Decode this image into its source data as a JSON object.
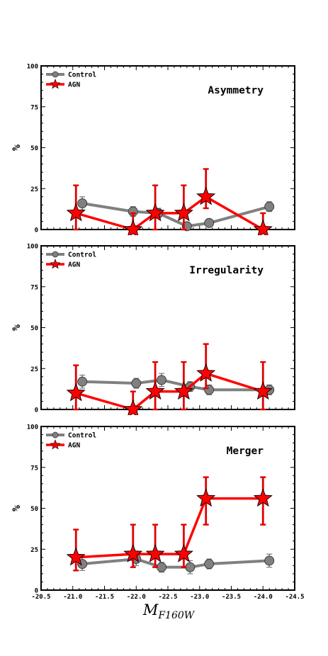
{
  "figure": {
    "xlabel_main": "M",
    "xlabel_sub": "F160W"
  },
  "chart_data": [
    {
      "type": "line",
      "title": "Asymmetry",
      "ylabel": "%",
      "xlabel": "",
      "xlim": [
        -20.5,
        -24.5
      ],
      "ylim": [
        0,
        100
      ],
      "yticks": [
        "0",
        "25",
        "50",
        "75",
        "100"
      ],
      "xticks": [],
      "grid": false,
      "legend_position": "top-left",
      "series": [
        {
          "name": "Control",
          "color": "#808080",
          "marker": "circle",
          "x": [
            -21.15,
            -21.95,
            -22.35,
            -22.8,
            -23.15,
            -24.1
          ],
          "y": [
            16,
            11,
            10,
            2,
            4,
            14
          ],
          "yerr": [
            4,
            3,
            3,
            1.5,
            1.5,
            3
          ]
        },
        {
          "name": "AGN",
          "color": "#ff0000",
          "marker": "star",
          "x": [
            -21.05,
            -21.95,
            -22.3,
            -22.75,
            -23.1,
            -24.0
          ],
          "y": [
            10,
            0,
            10,
            10,
            20,
            0
          ],
          "yerr_low": [
            10,
            0,
            10,
            10,
            7,
            0
          ],
          "yerr_high": [
            17,
            10,
            17,
            17,
            17,
            10
          ]
        }
      ]
    },
    {
      "type": "line",
      "title": "Irregularity",
      "ylabel": "%",
      "xlabel": "",
      "xlim": [
        -20.5,
        -24.5
      ],
      "ylim": [
        0,
        100
      ],
      "yticks": [
        "0",
        "25",
        "50",
        "75",
        "100"
      ],
      "xticks": [],
      "grid": false,
      "legend_position": "top-left",
      "series": [
        {
          "name": "Control",
          "color": "#808080",
          "marker": "circle",
          "x": [
            -21.15,
            -22.0,
            -22.4,
            -22.85,
            -23.15,
            -24.1
          ],
          "y": [
            17,
            16,
            18,
            14,
            12,
            12
          ],
          "yerr": [
            4,
            3,
            4,
            3,
            3,
            3
          ]
        },
        {
          "name": "AGN",
          "color": "#ff0000",
          "marker": "star",
          "x": [
            -21.05,
            -21.95,
            -22.3,
            -22.75,
            -23.1,
            -24.0
          ],
          "y": [
            10,
            0,
            11,
            11,
            22,
            11
          ],
          "yerr_low": [
            10,
            0,
            11,
            11,
            9,
            11
          ],
          "yerr_high": [
            17,
            11,
            18,
            18,
            18,
            18
          ]
        }
      ]
    },
    {
      "type": "line",
      "title": "Merger",
      "ylabel": "%",
      "xlabel": "M_F160W",
      "xlim": [
        -20.5,
        -24.5
      ],
      "ylim": [
        0,
        100
      ],
      "yticks": [
        "0",
        "25",
        "50",
        "75",
        "100"
      ],
      "xticks": [
        "-20.5",
        "-21.0",
        "-21.5",
        "-22.0",
        "-22.5",
        "-23.0",
        "-23.5",
        "-24.0",
        "-24.5"
      ],
      "grid": false,
      "legend_position": "top-left",
      "series": [
        {
          "name": "Control",
          "color": "#808080",
          "marker": "circle",
          "x": [
            -21.15,
            -22.0,
            -22.4,
            -22.85,
            -23.15,
            -24.1
          ],
          "y": [
            16,
            19,
            14,
            14,
            16,
            18
          ],
          "yerr": [
            4,
            4,
            3,
            4,
            3,
            4
          ]
        },
        {
          "name": "AGN",
          "color": "#ff0000",
          "marker": "star",
          "x": [
            -21.05,
            -21.95,
            -22.3,
            -22.75,
            -23.1,
            -24.0
          ],
          "y": [
            20,
            22,
            22,
            22,
            56,
            56
          ],
          "yerr_low": [
            8,
            8,
            8,
            8,
            16,
            16
          ],
          "yerr_high": [
            17,
            18,
            18,
            18,
            13,
            13
          ]
        }
      ]
    }
  ]
}
